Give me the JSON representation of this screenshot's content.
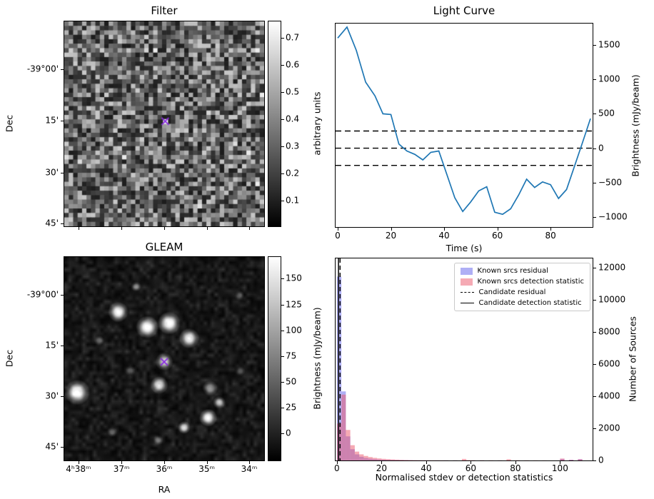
{
  "figure": {
    "background": "#ffffff"
  },
  "chart_data": [
    {
      "type": "heatmap",
      "title": "Filter",
      "ylabel": "Dec",
      "yticks": [
        {
          "pos": 0.235,
          "label": "-39°00'"
        },
        {
          "pos": 0.485,
          "label": "15'"
        },
        {
          "pos": 0.74,
          "label": "30'"
        },
        {
          "pos": 0.985,
          "label": "45'"
        }
      ],
      "xtick_positions": [
        0.071,
        0.286,
        0.5,
        0.713,
        0.925
      ],
      "colorbar": {
        "label": "arbitrary units",
        "vmin": 0.005,
        "vmax": 0.76,
        "ticks": [
          {
            "v": 0.7,
            "label": "0.7"
          },
          {
            "v": 0.6,
            "label": "0.6"
          },
          {
            "v": 0.5,
            "label": "0.5"
          },
          {
            "v": 0.4,
            "label": "0.4"
          },
          {
            "v": 0.3,
            "label": "0.3"
          },
          {
            "v": 0.2,
            "label": "0.2"
          },
          {
            "v": 0.1,
            "label": "0.1"
          }
        ]
      },
      "noise": {
        "seed": 42,
        "grid": 45,
        "description": "grayscale random noise image"
      },
      "marker": {
        "symbol": "x",
        "fx": 0.505,
        "fy": 0.487,
        "color": "#8a2be2"
      }
    },
    {
      "type": "line",
      "title": "Light Curve",
      "xlabel": "Time (s)",
      "ylabel": "Brightness (mJy/beam)",
      "line_color": "#1f77b4",
      "xlim": [
        -0.8,
        95.8
      ],
      "ylim": [
        -1145,
        1811
      ],
      "xticks": [
        {
          "v": 0,
          "label": "0"
        },
        {
          "v": 20,
          "label": "20"
        },
        {
          "v": 40,
          "label": "40"
        },
        {
          "v": 60,
          "label": "60"
        },
        {
          "v": 80,
          "label": "80"
        }
      ],
      "yticks": [
        {
          "v": 1500,
          "label": "1500"
        },
        {
          "v": 1000,
          "label": "1000"
        },
        {
          "v": 500,
          "label": "500"
        },
        {
          "v": 0,
          "label": "0"
        },
        {
          "v": -500,
          "label": "−500"
        },
        {
          "v": -1000,
          "label": "−1000"
        }
      ],
      "points": [
        [
          0,
          1600
        ],
        [
          3.5,
          1760
        ],
        [
          7,
          1420
        ],
        [
          10.5,
          960
        ],
        [
          14,
          760
        ],
        [
          17,
          500
        ],
        [
          20,
          490
        ],
        [
          23,
          60
        ],
        [
          26,
          -40
        ],
        [
          29,
          -90
        ],
        [
          32,
          -170
        ],
        [
          35,
          -60
        ],
        [
          38,
          -40
        ],
        [
          41,
          -380
        ],
        [
          44,
          -720
        ],
        [
          47,
          -920
        ],
        [
          50,
          -780
        ],
        [
          53,
          -620
        ],
        [
          56,
          -560
        ],
        [
          59,
          -930
        ],
        [
          62,
          -960
        ],
        [
          65,
          -880
        ],
        [
          68,
          -680
        ],
        [
          71,
          -450
        ],
        [
          74,
          -570
        ],
        [
          77,
          -490
        ],
        [
          80,
          -530
        ],
        [
          83,
          -730
        ],
        [
          86,
          -600
        ],
        [
          89,
          -260
        ],
        [
          92,
          80
        ],
        [
          95,
          430
        ]
      ],
      "threshold_lines": {
        "values": [
          250,
          0,
          -250
        ],
        "style": "dashed",
        "color": "#000000"
      }
    },
    {
      "type": "heatmap",
      "title": "GLEAM",
      "xlabel": "RA",
      "ylabel": "Dec",
      "yticks": [
        {
          "pos": 0.185,
          "label": "-39°00'"
        },
        {
          "pos": 0.435,
          "label": "15'"
        },
        {
          "pos": 0.685,
          "label": "30'"
        },
        {
          "pos": 0.935,
          "label": "45'"
        }
      ],
      "xticks": [
        {
          "pos": 0.071,
          "label": "4ʰ38ᵐ"
        },
        {
          "pos": 0.286,
          "label": "37ᵐ"
        },
        {
          "pos": 0.5,
          "label": "36ᵐ"
        },
        {
          "pos": 0.713,
          "label": "35ᵐ"
        },
        {
          "pos": 0.925,
          "label": "34ᵐ"
        }
      ],
      "colorbar": {
        "label": "Brightness (mJy/beam)",
        "vmin": -26,
        "vmax": 171,
        "ticks": [
          {
            "v": 150,
            "label": "150"
          },
          {
            "v": 125,
            "label": "125"
          },
          {
            "v": 100,
            "label": "100"
          },
          {
            "v": 75,
            "label": "75"
          },
          {
            "v": 50,
            "label": "50"
          },
          {
            "v": 25,
            "label": "25"
          },
          {
            "v": 0,
            "label": "0"
          }
        ]
      },
      "noise": {
        "seed": 77,
        "description": "smoothed dark sky background"
      },
      "sources": [
        [
          0.27,
          0.27,
          8,
          0.95
        ],
        [
          0.415,
          0.345,
          9,
          1.0
        ],
        [
          0.525,
          0.325,
          9,
          1.0
        ],
        [
          0.625,
          0.4,
          8,
          0.95
        ],
        [
          0.5,
          0.515,
          7,
          0.75
        ],
        [
          0.065,
          0.665,
          10,
          1.0
        ],
        [
          0.475,
          0.63,
          7,
          0.85
        ],
        [
          0.73,
          0.645,
          6,
          0.55
        ],
        [
          0.775,
          0.715,
          5,
          0.7
        ],
        [
          0.72,
          0.79,
          7,
          0.95
        ],
        [
          0.6,
          0.838,
          5,
          0.85
        ],
        [
          0.36,
          0.145,
          4,
          0.45
        ],
        [
          0.875,
          0.19,
          4,
          0.3
        ],
        [
          0.175,
          0.41,
          4,
          0.35
        ],
        [
          0.33,
          0.56,
          4,
          0.3
        ],
        [
          0.88,
          0.56,
          4,
          0.3
        ],
        [
          0.24,
          0.86,
          4,
          0.35
        ],
        [
          0.47,
          0.9,
          4,
          0.4
        ]
      ],
      "marker": {
        "symbol": "x",
        "fx": 0.5,
        "fy": 0.515,
        "color": "#8a2be2"
      }
    },
    {
      "type": "bar",
      "title": "",
      "xlabel": "Normalised stdev or detection statistics",
      "ylabel": "Number of Sources",
      "xlim": [
        -0.6,
        114.6
      ],
      "ylim": [
        0,
        12580
      ],
      "bin_width": 2,
      "xticks": [
        {
          "v": 0,
          "label": "0"
        },
        {
          "v": 20,
          "label": "20"
        },
        {
          "v": 40,
          "label": "40"
        },
        {
          "v": 60,
          "label": "60"
        },
        {
          "v": 80,
          "label": "80"
        },
        {
          "v": 100,
          "label": "100"
        }
      ],
      "yticks": [
        {
          "v": 0,
          "label": "0"
        },
        {
          "v": 2000,
          "label": "2000"
        },
        {
          "v": 4000,
          "label": "4000"
        },
        {
          "v": 6000,
          "label": "6000"
        },
        {
          "v": 8000,
          "label": "8000"
        },
        {
          "v": 10000,
          "label": "10000"
        },
        {
          "v": 12000,
          "label": "12000"
        }
      ],
      "series": [
        {
          "name": "Known srcs residual",
          "color": "rgba(95,95,235,0.5)",
          "bins": [
            [
              0,
              11450
            ],
            [
              2,
              4300
            ],
            [
              4,
              1500
            ],
            [
              6,
              700
            ],
            [
              8,
              380
            ],
            [
              10,
              230
            ],
            [
              12,
              150
            ],
            [
              14,
              110
            ],
            [
              16,
              80
            ],
            [
              18,
              60
            ],
            [
              20,
              45
            ],
            [
              22,
              34
            ],
            [
              24,
              26
            ],
            [
              26,
              20
            ],
            [
              28,
              15
            ],
            [
              30,
              12
            ],
            [
              32,
              10
            ],
            [
              34,
              8
            ],
            [
              36,
              7
            ],
            [
              38,
              6
            ],
            [
              40,
              5
            ],
            [
              44,
              5
            ],
            [
              48,
              4
            ],
            [
              52,
              4
            ],
            [
              56,
              3
            ],
            [
              60,
              3
            ],
            [
              64,
              3
            ],
            [
              72,
              3
            ],
            [
              80,
              2
            ],
            [
              100,
              95
            ],
            [
              104,
              45
            ],
            [
              108,
              80
            ]
          ]
        },
        {
          "name": "Known srcs detection statistic",
          "color": "rgba(235,85,105,0.5)",
          "bins": [
            [
              0,
              2300
            ],
            [
              2,
              4100
            ],
            [
              4,
              1900
            ],
            [
              6,
              950
            ],
            [
              8,
              550
            ],
            [
              10,
              380
            ],
            [
              12,
              280
            ],
            [
              14,
              210
            ],
            [
              16,
              160
            ],
            [
              18,
              125
            ],
            [
              20,
              100
            ],
            [
              22,
              80
            ],
            [
              24,
              64
            ],
            [
              26,
              50
            ],
            [
              28,
              40
            ],
            [
              30,
              32
            ],
            [
              32,
              26
            ],
            [
              34,
              21
            ],
            [
              36,
              17
            ],
            [
              38,
              14
            ],
            [
              40,
              12
            ],
            [
              42,
              10
            ],
            [
              44,
              9
            ],
            [
              46,
              8
            ],
            [
              48,
              7
            ],
            [
              52,
              6
            ],
            [
              56,
              95
            ],
            [
              58,
              20
            ],
            [
              60,
              14
            ],
            [
              64,
              10
            ],
            [
              68,
              8
            ],
            [
              72,
              6
            ],
            [
              76,
              75
            ],
            [
              80,
              14
            ],
            [
              84,
              8
            ],
            [
              88,
              6
            ],
            [
              92,
              5
            ],
            [
              100,
              115
            ],
            [
              104,
              35
            ],
            [
              108,
              75
            ]
          ]
        }
      ],
      "candidate_lines": [
        {
          "label": "Candidate residual",
          "style": "dashed",
          "x": 1.4,
          "color": "#000000"
        },
        {
          "label": "Candidate detection statistic",
          "style": "solid",
          "x": 0.7,
          "color": "#000000"
        }
      ],
      "legend": [
        {
          "swatch": "patch",
          "color": "rgba(95,95,235,0.5)",
          "label": "Known srcs residual"
        },
        {
          "swatch": "patch",
          "color": "rgba(235,85,105,0.5)",
          "label": "Known srcs detection statistic"
        },
        {
          "swatch": "dashed",
          "color": "#000000",
          "label": "Candidate residual"
        },
        {
          "swatch": "solid",
          "color": "#000000",
          "label": "Candidate detection statistic"
        }
      ]
    }
  ]
}
